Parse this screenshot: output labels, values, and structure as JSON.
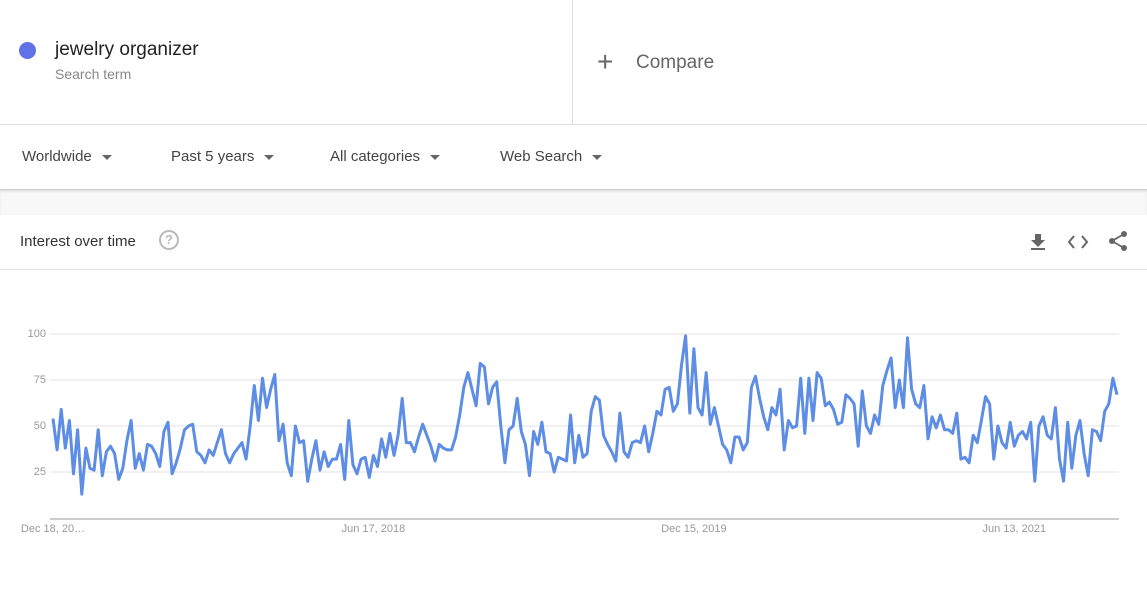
{
  "search_term": {
    "name": "jewelry organizer",
    "kind": "Search term"
  },
  "compare": "Compare",
  "filters": [
    "Worldwide",
    "Past 5 years",
    "All categories",
    "Web Search"
  ],
  "panel_title": "Interest over time",
  "chart_data": {
    "type": "line",
    "color": "#5e8de6",
    "grid": true,
    "ylim": [
      0,
      100
    ],
    "yticks": [
      25,
      50,
      75,
      100
    ],
    "categories": [
      "Dec 18, 20…",
      null,
      null,
      null,
      null,
      null,
      null,
      null,
      null,
      null,
      null,
      null,
      null,
      null,
      null,
      null,
      null,
      null,
      null,
      null,
      null,
      null,
      null,
      null,
      null,
      null,
      null,
      null,
      null,
      null,
      null,
      null,
      null,
      null,
      null,
      null,
      null,
      null,
      null,
      null,
      null,
      null,
      null,
      null,
      null,
      null,
      null,
      null,
      null,
      null,
      null,
      null,
      null,
      null,
      null,
      null,
      null,
      null,
      null,
      null,
      null,
      null,
      null,
      null,
      null,
      null,
      null,
      null,
      null,
      null,
      null,
      null,
      null,
      null,
      null,
      null,
      null,
      null,
      "Jun 17, 2018",
      null,
      null,
      null,
      null,
      null,
      null,
      null,
      null,
      null,
      null,
      null,
      null,
      null,
      null,
      null,
      null,
      null,
      null,
      null,
      null,
      null,
      null,
      null,
      null,
      null,
      null,
      null,
      null,
      null,
      null,
      null,
      null,
      null,
      null,
      null,
      null,
      null,
      null,
      null,
      null,
      null,
      null,
      null,
      null,
      null,
      null,
      null,
      null,
      null,
      null,
      null,
      null,
      null,
      null,
      null,
      null,
      null,
      null,
      null,
      null,
      null,
      null,
      null,
      null,
      null,
      null,
      null,
      null,
      null,
      null,
      null,
      null,
      null,
      null,
      null,
      null,
      null,
      "Dec 15, 2019",
      null,
      null,
      null,
      null,
      null,
      null,
      null,
      null,
      null,
      null,
      null,
      null,
      null,
      null,
      null,
      null,
      null,
      null,
      null,
      null,
      null,
      null,
      null,
      null,
      null,
      null,
      null,
      null,
      null,
      null,
      null,
      null,
      null,
      null,
      null,
      null,
      null,
      null,
      null,
      null,
      null,
      null,
      null,
      null,
      null,
      null,
      null,
      null,
      null,
      null,
      null,
      null,
      null,
      null,
      null,
      null,
      null,
      null,
      null,
      null,
      null,
      null,
      null,
      null,
      null,
      null,
      null,
      null,
      null,
      null,
      null,
      null,
      null,
      null,
      null,
      null,
      null,
      "Jun 13, 2021",
      null,
      null,
      null,
      null,
      null,
      null,
      null,
      null,
      null,
      null,
      null,
      null,
      null,
      null,
      null,
      null,
      null,
      null,
      null,
      null,
      null,
      null,
      null,
      null,
      null
    ],
    "values": [
      54,
      37,
      59,
      38,
      53,
      24,
      48,
      13,
      38,
      27,
      26,
      48,
      23,
      36,
      39,
      35,
      21,
      27,
      42,
      53,
      27,
      35,
      26,
      40,
      39,
      35,
      28,
      47,
      52,
      24,
      30,
      38,
      48,
      50,
      51,
      36,
      34,
      30,
      37,
      34,
      41,
      48,
      35,
      30,
      35,
      38,
      41,
      32,
      50,
      72,
      53,
      76,
      60,
      70,
      78,
      42,
      51,
      30,
      23,
      50,
      41,
      42,
      20,
      32,
      42,
      26,
      36,
      28,
      32,
      32,
      40,
      21,
      53,
      29,
      24,
      32,
      33,
      22,
      34,
      28,
      43,
      33,
      46,
      34,
      45,
      65,
      41,
      41,
      36,
      44,
      51,
      45,
      39,
      31,
      40,
      38,
      37,
      37,
      44,
      56,
      71,
      79,
      70,
      61,
      84,
      82,
      62,
      71,
      74,
      50,
      30,
      48,
      50,
      65,
      47,
      40,
      23,
      47,
      40,
      52,
      36,
      35,
      25,
      33,
      32,
      31,
      56,
      30,
      45,
      33,
      35,
      58,
      66,
      64,
      45,
      40,
      36,
      31,
      57,
      36,
      33,
      41,
      42,
      41,
      50,
      36,
      46,
      58,
      56,
      70,
      71,
      58,
      62,
      83,
      99,
      57,
      92,
      60,
      56,
      79,
      51,
      60,
      50,
      40,
      37,
      30,
      44,
      44,
      37,
      41,
      71,
      77,
      65,
      55,
      48,
      60,
      56,
      70,
      37,
      53,
      49,
      50,
      76,
      46,
      76,
      53,
      79,
      76,
      61,
      63,
      59,
      51,
      52,
      67,
      65,
      62,
      39,
      69,
      50,
      46,
      56,
      51,
      72,
      80,
      87,
      60,
      75,
      60,
      98,
      70,
      62,
      60,
      72,
      43,
      55,
      49,
      56,
      48,
      48,
      46,
      57,
      32,
      33,
      30,
      45,
      41,
      53,
      66,
      62,
      32,
      50,
      41,
      38,
      52,
      39,
      45,
      47,
      43,
      52,
      20,
      50,
      55,
      45,
      43,
      60,
      32,
      20,
      52,
      27,
      45,
      53,
      35,
      23,
      48,
      47,
      42,
      58,
      62,
      76,
      67
    ]
  }
}
